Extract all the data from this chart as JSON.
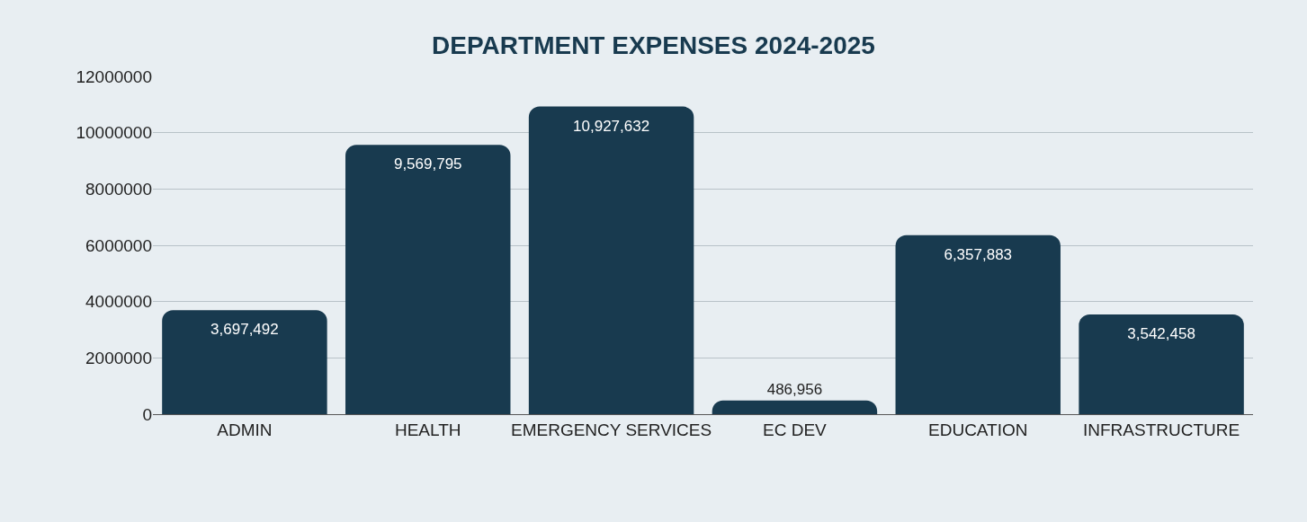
{
  "chart_data": {
    "type": "bar",
    "title": "DEPARTMENT EXPENSES 2024-2025",
    "categories": [
      "ADMIN",
      "HEALTH",
      "EMERGENCY SERVICES",
      "EC DEV",
      "EDUCATION",
      "INFRASTRUCTURE"
    ],
    "values": [
      3697492,
      9569795,
      10927632,
      486956,
      6357883,
      3542458
    ],
    "color": "#183a4f",
    "ylim": [
      0,
      12000000
    ],
    "yticks": [
      0,
      2000000,
      4000000,
      6000000,
      8000000,
      10000000,
      12000000
    ],
    "value_labels": [
      "3,697,492",
      "9,569,795",
      "10,927,632",
      "486,956",
      "6,357,883",
      "3,542,458"
    ],
    "grid": "y",
    "legend": false
  }
}
